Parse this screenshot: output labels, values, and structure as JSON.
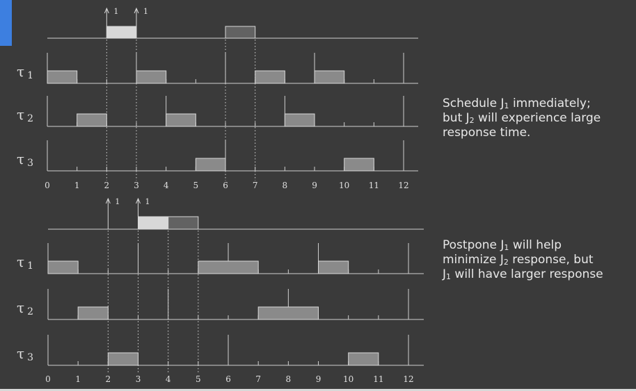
{
  "colors": {
    "background": "#3a3a3a",
    "accent": "#3d7fe0",
    "task_block": "#8a8a8a",
    "job1_block": "#d8d8d8",
    "job2_block": "#626262"
  },
  "tick_labels": [
    "0",
    "1",
    "2",
    "3",
    "4",
    "5",
    "6",
    "7",
    "8",
    "9",
    "10",
    "11",
    "12"
  ],
  "diagrams": [
    {
      "id": "top",
      "arrivals": [
        {
          "time": 2,
          "label": "1"
        },
        {
          "time": 3,
          "label": "1"
        }
      ],
      "aperiodic": [
        {
          "job": "J1",
          "start": 2,
          "end": 3
        },
        {
          "job": "J2",
          "start": 6,
          "end": 7
        }
      ],
      "dotted_times": [
        2,
        3,
        6,
        7
      ],
      "tasks": [
        {
          "symbol": "τ",
          "index": "1",
          "deadlines": [
            0,
            3,
            6,
            9,
            12
          ],
          "execution": [
            {
              "start": 0,
              "end": 1
            },
            {
              "start": 3,
              "end": 4
            },
            {
              "start": 7,
              "end": 8
            },
            {
              "start": 9,
              "end": 10
            }
          ]
        },
        {
          "symbol": "τ",
          "index": "2",
          "deadlines": [
            0,
            4,
            8,
            12
          ],
          "execution": [
            {
              "start": 1,
              "end": 2
            },
            {
              "start": 4,
              "end": 5
            },
            {
              "start": 8,
              "end": 9
            }
          ]
        },
        {
          "symbol": "τ",
          "index": "3",
          "deadlines": [
            0,
            6,
            12
          ],
          "execution": [
            {
              "start": 5,
              "end": 6
            },
            {
              "start": 10,
              "end": 11
            }
          ]
        }
      ]
    },
    {
      "id": "bottom",
      "arrivals": [
        {
          "time": 2,
          "label": "1"
        },
        {
          "time": 3,
          "label": "1"
        }
      ],
      "aperiodic": [
        {
          "job": "J1",
          "start": 3,
          "end": 4
        },
        {
          "job": "J2",
          "start": 4,
          "end": 5
        }
      ],
      "dotted_times": [
        2,
        3,
        4,
        5
      ],
      "tasks": [
        {
          "symbol": "τ",
          "index": "1",
          "deadlines": [
            0,
            3,
            6,
            9,
            12
          ],
          "execution": [
            {
              "start": 0,
              "end": 1
            },
            {
              "start": 5,
              "end": 7
            },
            {
              "start": 9,
              "end": 10
            }
          ]
        },
        {
          "symbol": "τ",
          "index": "2",
          "deadlines": [
            0,
            4,
            8,
            12
          ],
          "execution": [
            {
              "start": 1,
              "end": 2
            },
            {
              "start": 7,
              "end": 9
            }
          ]
        },
        {
          "symbol": "τ",
          "index": "3",
          "deadlines": [
            0,
            6,
            12
          ],
          "execution": [
            {
              "start": 2,
              "end": 3
            },
            {
              "start": 10,
              "end": 11
            }
          ]
        }
      ]
    }
  ],
  "captions": {
    "top": {
      "l1_a": "Schedule J",
      "l1_sub": "1",
      "l1_b": " immediately;",
      "l2_a": "but J",
      "l2_sub": "2",
      "l2_b": " will experience large",
      "l3": "response time."
    },
    "bottom": {
      "l1_a": "Postpone J",
      "l1_sub": "1",
      "l1_b": " will help",
      "l2_a": "minimize J",
      "l2_sub": "2",
      "l2_b": "  response, but",
      "l3_a": "J",
      "l3_sub": "1",
      "l3_b": " will have larger response"
    }
  }
}
